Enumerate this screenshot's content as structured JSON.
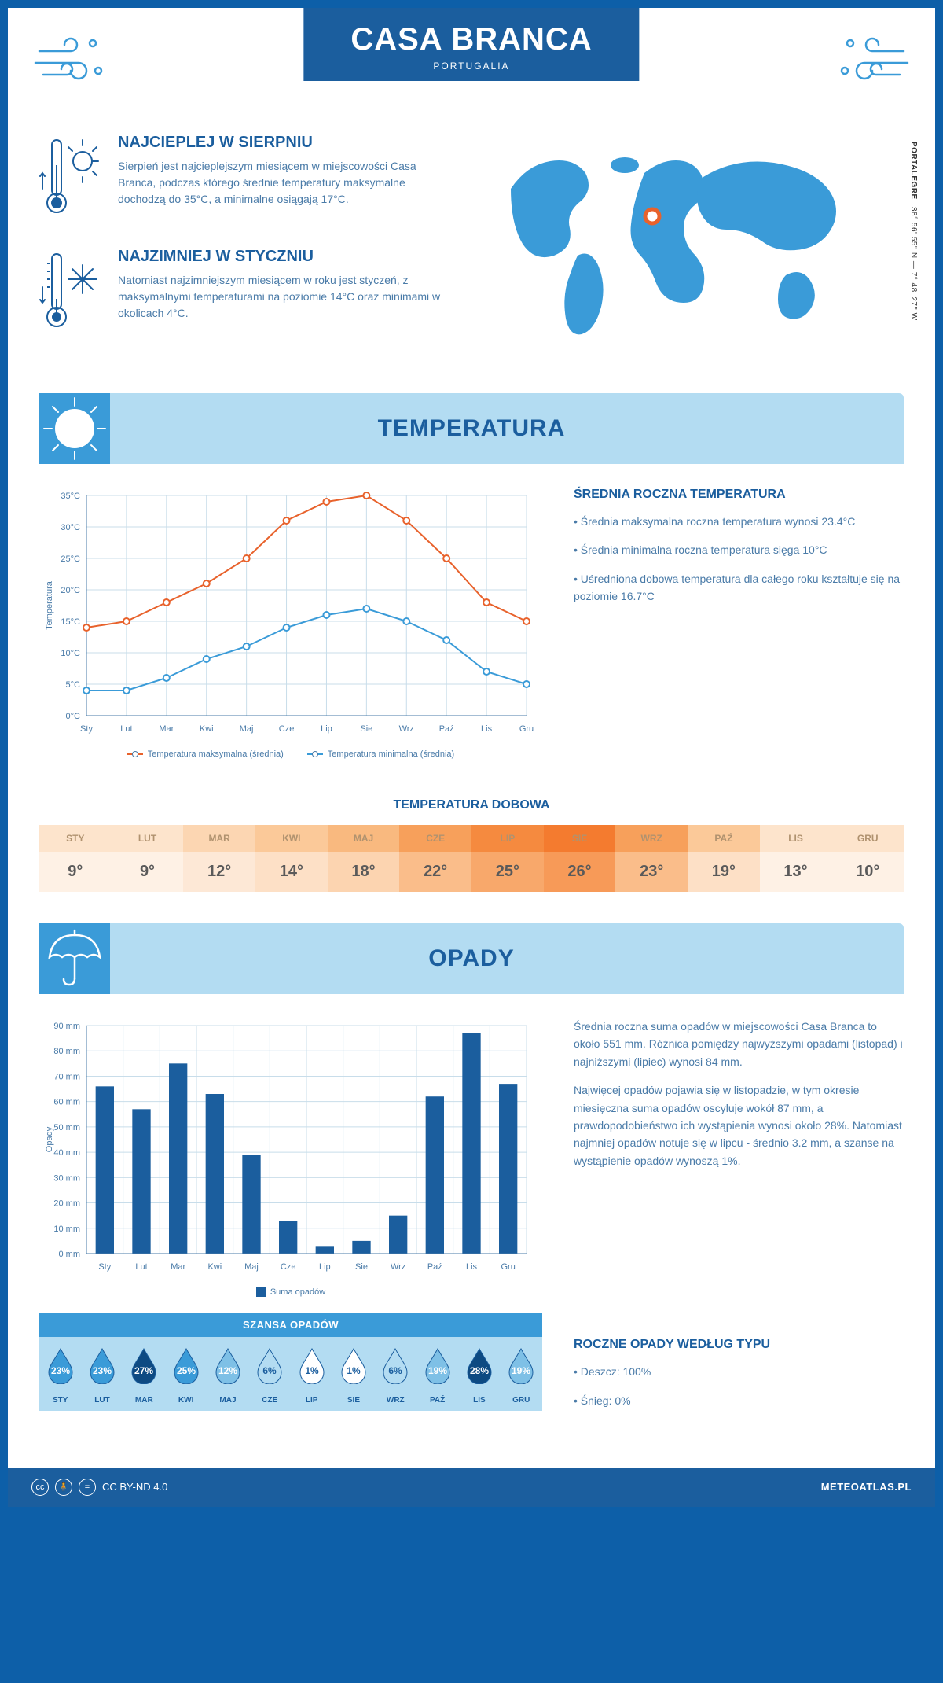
{
  "header": {
    "title": "CASA BRANCA",
    "subtitle": "PORTUGALIA"
  },
  "coords": {
    "region": "PORTALEGRE",
    "lat": "38° 56' 55'' N",
    "lon": "7° 48' 27'' W"
  },
  "warmest": {
    "title": "NAJCIEPLEJ W SIERPNIU",
    "text": "Sierpień jest najcieplejszym miesiącem w miejscowości Casa Branca, podczas którego średnie temperatury maksymalne dochodzą do 35°C, a minimalne osiągają 17°C."
  },
  "coldest": {
    "title": "NAJZIMNIEJ W STYCZNIU",
    "text": "Natomiast najzimniejszym miesiącem w roku jest styczeń, z maksymalnymi temperaturami na poziomie 14°C oraz minimami w okolicach 4°C."
  },
  "temp_section": {
    "title": "TEMPERATURA",
    "chart": {
      "months": [
        "Sty",
        "Lut",
        "Mar",
        "Kwi",
        "Maj",
        "Cze",
        "Lip",
        "Sie",
        "Wrz",
        "Paź",
        "Lis",
        "Gru"
      ],
      "max": [
        14,
        15,
        18,
        21,
        25,
        31,
        34,
        35,
        31,
        25,
        18,
        15
      ],
      "min": [
        4,
        4,
        6,
        9,
        11,
        14,
        16,
        17,
        15,
        12,
        7,
        5
      ],
      "ylabel": "Temperatura",
      "ymin": 0,
      "ymax": 35,
      "ystep": 5,
      "max_color": "#e8622c",
      "min_color": "#3a9bd8",
      "grid_color": "#c8ddea",
      "text_color": "#4a7ba8",
      "legend_max": "Temperatura maksymalna (średnia)",
      "legend_min": "Temperatura minimalna (średnia)"
    },
    "stats_title": "ŚREDNIA ROCZNA TEMPERATURA",
    "stat1": "• Średnia maksymalna roczna temperatura wynosi 23.4°C",
    "stat2": "• Średnia minimalna roczna temperatura sięga 10°C",
    "stat3": "• Uśredniona dobowa temperatura dla całego roku kształtuje się na poziomie 16.7°C",
    "daily_title": "TEMPERATURA DOBOWA",
    "daily": {
      "months": [
        "STY",
        "LUT",
        "MAR",
        "KWI",
        "MAJ",
        "CZE",
        "LIP",
        "SIE",
        "WRZ",
        "PAŹ",
        "LIS",
        "GRU"
      ],
      "values": [
        "9°",
        "9°",
        "12°",
        "14°",
        "18°",
        "22°",
        "25°",
        "26°",
        "23°",
        "19°",
        "13°",
        "10°"
      ],
      "head_colors": [
        "#fde4cc",
        "#fde4cc",
        "#fcd6b2",
        "#fbc999",
        "#f9b97f",
        "#f7a05b",
        "#f58a3f",
        "#f47b2f",
        "#f7a05b",
        "#fbc999",
        "#fde4cc",
        "#fde4cc"
      ],
      "val_colors": [
        "#fef1e5",
        "#fef1e5",
        "#fde8d6",
        "#fde0c6",
        "#fcd4b0",
        "#fabd8a",
        "#f8a86b",
        "#f79a58",
        "#fabd8a",
        "#fde0c6",
        "#fef1e5",
        "#fef1e5"
      ],
      "head_text": "#b0926f"
    }
  },
  "precip_section": {
    "title": "OPADY",
    "chart": {
      "months": [
        "Sty",
        "Lut",
        "Mar",
        "Kwi",
        "Maj",
        "Cze",
        "Lip",
        "Sie",
        "Wrz",
        "Paź",
        "Lis",
        "Gru"
      ],
      "values": [
        66,
        57,
        75,
        63,
        39,
        13,
        3,
        5,
        15,
        62,
        87,
        67
      ],
      "ylabel": "Opady",
      "ymin": 0,
      "ymax": 90,
      "ystep": 10,
      "bar_color": "#1b5e9e",
      "grid_color": "#c8ddea",
      "text_color": "#4a7ba8",
      "legend": "Suma opadów"
    },
    "text1": "Średnia roczna suma opadów w miejscowości Casa Branca to około 551 mm. Różnica pomiędzy najwyższymi opadami (listopad) i najniższymi (lipiec) wynosi 84 mm.",
    "text2": "Najwięcej opadów pojawia się w listopadzie, w tym okresie miesięczna suma opadów oscyluje wokół 87 mm, a prawdopodobieństwo ich wystąpienia wynosi około 28%. Natomiast najmniej opadów notuje się w lipcu - średnio 3.2 mm, a szanse na wystąpienie opadów wynoszą 1%.",
    "chance_title": "SZANSA OPADÓW",
    "chance": {
      "months": [
        "STY",
        "LUT",
        "MAR",
        "KWI",
        "MAJ",
        "CZE",
        "LIP",
        "SIE",
        "WRZ",
        "PAŹ",
        "LIS",
        "GRU"
      ],
      "pct": [
        "23%",
        "23%",
        "27%",
        "25%",
        "12%",
        "6%",
        "1%",
        "1%",
        "6%",
        "19%",
        "28%",
        "19%"
      ],
      "fill": [
        "#3a9bd8",
        "#3a9bd8",
        "#0d4a82",
        "#3a9bd8",
        "#7ec0e6",
        "#b3dcf2",
        "#ffffff",
        "#ffffff",
        "#b3dcf2",
        "#7ec0e6",
        "#0d4a82",
        "#7ec0e6"
      ],
      "txt": [
        "#ffffff",
        "#ffffff",
        "#ffffff",
        "#ffffff",
        "#ffffff",
        "#1b5e9e",
        "#1b5e9e",
        "#1b5e9e",
        "#1b5e9e",
        "#ffffff",
        "#ffffff",
        "#ffffff"
      ]
    },
    "type_title": "ROCZNE OPADY WEDŁUG TYPU",
    "type1": "• Deszcz: 100%",
    "type2": "• Śnieg: 0%"
  },
  "footer": {
    "license": "CC BY-ND 4.0",
    "site": "METEOATLAS.PL"
  }
}
